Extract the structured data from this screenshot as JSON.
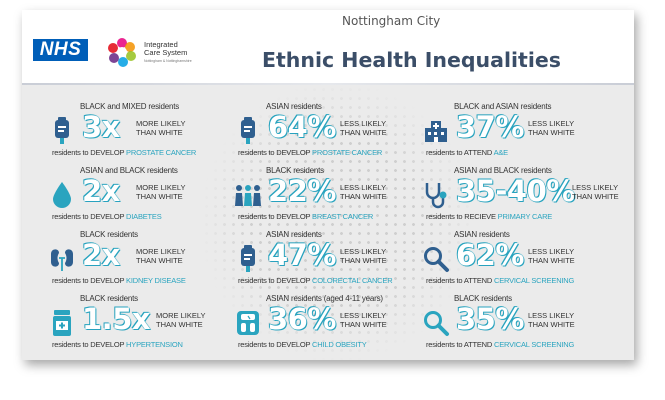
{
  "header": {
    "nhs_logo": "NHS",
    "ics_name": "Integrated Care System",
    "ics_sub": "Nottingham & Nottinghamshire",
    "city": "Nottingham City",
    "title": "Ethnic Health Inequalities"
  },
  "colors": {
    "accent": "#2aa4bf",
    "title": "#3b4e68",
    "nhs_blue": "#005eb8",
    "icon": "#2f5f8f"
  },
  "stats": [
    {
      "group": "BLACK and MIXED residents",
      "value": "3x",
      "comparison": "MORE LIKELY THAN WHITE",
      "prefix": "residents to DEVELOP",
      "outcome": "PROSTATE CANCER",
      "icon": "iv-bag-icon"
    },
    {
      "group": "ASIAN residents",
      "value": "64%",
      "comparison": "LESS LIKELY THAN WHITE",
      "prefix": "residents to DEVELOP",
      "outcome": "PROSTATE CANCER",
      "icon": "iv-bag-icon"
    },
    {
      "group": "BLACK and ASIAN residents",
      "value": "37%",
      "comparison": "LESS LIKELY THAN WHITE",
      "prefix": "residents to ATTEND",
      "outcome": "A&E",
      "icon": "hospital-icon"
    },
    {
      "group": "ASIAN and BLACK residents",
      "value": "2x",
      "comparison": "MORE LIKELY THAN WHITE",
      "prefix": "residents to DEVELOP",
      "outcome": "DIABETES",
      "icon": "blood-drop-icon"
    },
    {
      "group": "BLACK residents",
      "value": "22%",
      "comparison": "LESS LIKELY THAN WHITE",
      "prefix": "residents to DEVELOP",
      "outcome": "BREAST CANCER",
      "icon": "people-icon"
    },
    {
      "group": "ASIAN and BLACK residents",
      "value": "35-40%",
      "comparison": "LESS LIKELY THAN WHITE",
      "prefix": "residents to RECIEVE",
      "outcome": "PRIMARY CARE",
      "icon": "stethoscope-icon"
    },
    {
      "group": "BLACK residents",
      "value": "2x",
      "comparison": "MORE LIKELY THAN WHITE",
      "prefix": "residents to DEVELOP",
      "outcome": "KIDNEY DISEASE",
      "icon": "kidneys-icon"
    },
    {
      "group": "ASIAN residents",
      "value": "47%",
      "comparison": "LESS LIKELY THAN WHITE",
      "prefix": "residents to DEVELOP",
      "outcome": "COLORECTAL CANCER",
      "icon": "iv-bag-icon"
    },
    {
      "group": "ASIAN residents",
      "value": "62%",
      "comparison": "LESS LIKELY THAN WHITE",
      "prefix": "residents to ATTEND",
      "outcome": "CERVICAL SCREENING",
      "icon": "magnifier-icon"
    },
    {
      "group": "BLACK residents",
      "value": "1.5x",
      "comparison": "MORE LIKELY THAN WHITE",
      "prefix": "residents to DEVELOP",
      "outcome": "HYPERTENSION",
      "icon": "pill-bottle-icon"
    },
    {
      "group": "ASIAN residents (aged 4-11 years)",
      "value": "36%",
      "comparison": "LESS LIKELY THAN WHITE",
      "prefix": "residents to DEVELOP",
      "outcome": "CHILD OBESITY",
      "icon": "scale-icon"
    },
    {
      "group": "BLACK residents",
      "value": "35%",
      "comparison": "LESS LIKELY THAN WHITE",
      "prefix": "residents to ATTEND",
      "outcome": "CERVICAL SCREENING",
      "icon": "magnifier-icon"
    }
  ]
}
